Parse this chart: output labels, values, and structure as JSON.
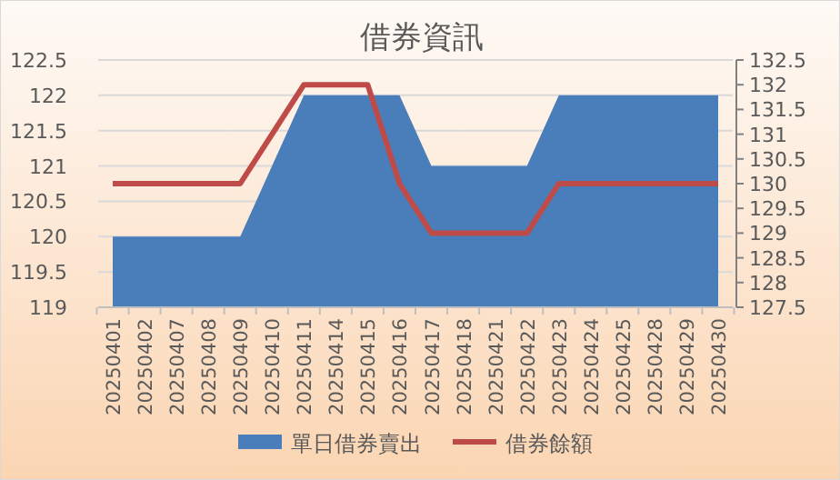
{
  "chart_data": {
    "type": "area",
    "title": "借券資訊",
    "categories": [
      "20250401",
      "20250402",
      "20250407",
      "20250408",
      "20250409",
      "20250410",
      "20250411",
      "20250414",
      "20250415",
      "20250416",
      "20250417",
      "20250418",
      "20250421",
      "20250422",
      "20250423",
      "20250424",
      "20250425",
      "20250428",
      "20250429",
      "20250430"
    ],
    "series": [
      {
        "name": "單日借券賣出",
        "type": "area",
        "color": "#4a7ebb",
        "values": [
          120,
          120,
          120,
          120,
          120,
          121,
          122,
          122,
          122,
          122,
          121,
          121,
          121,
          121,
          122,
          122,
          122,
          122,
          122,
          122
        ]
      },
      {
        "name": "借券餘額",
        "type": "line",
        "axis": "y2",
        "color": "#be4b48",
        "values": [
          130,
          130,
          130,
          130,
          130,
          131,
          132,
          132,
          132,
          130,
          129,
          129,
          129,
          129,
          130,
          130,
          130,
          130,
          130,
          130
        ]
      }
    ],
    "ylim": [
      119,
      122.5
    ],
    "yticks": [
      119,
      119.5,
      120,
      120.5,
      121,
      121.5,
      122,
      122.5
    ],
    "y2lim": [
      127.5,
      132.5
    ],
    "y2ticks": [
      127.5,
      128,
      128.5,
      129,
      129.5,
      130,
      130.5,
      131,
      131.5,
      132,
      132.5
    ],
    "grid": "y",
    "legend": "bottom",
    "marker": "none",
    "line_style": "solid"
  }
}
